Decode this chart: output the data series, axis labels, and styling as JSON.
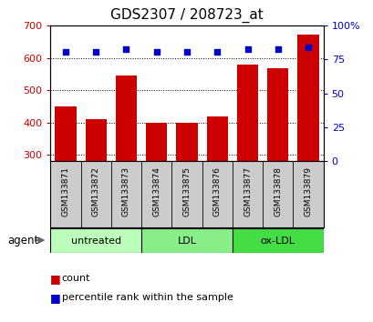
{
  "title": "GDS2307 / 208723_at",
  "categories": [
    "GSM133871",
    "GSM133872",
    "GSM133873",
    "GSM133874",
    "GSM133875",
    "GSM133876",
    "GSM133877",
    "GSM133878",
    "GSM133879"
  ],
  "counts": [
    450,
    410,
    545,
    398,
    398,
    418,
    580,
    568,
    672
  ],
  "percentile_ranks": [
    81,
    81,
    83,
    81,
    81,
    81,
    83,
    83,
    84
  ],
  "ylim_left": [
    280,
    700
  ],
  "ylim_right": [
    0,
    100
  ],
  "yticks_left": [
    300,
    400,
    500,
    600,
    700
  ],
  "yticks_right": [
    0,
    25,
    50,
    75,
    100
  ],
  "bar_color": "#cc0000",
  "dot_color": "#0000cc",
  "bar_bottom": 280,
  "agent_groups": [
    {
      "label": "untreated",
      "start": 0,
      "end": 3,
      "color": "#bbffbb"
    },
    {
      "label": "LDL",
      "start": 3,
      "end": 6,
      "color": "#88ee88"
    },
    {
      "label": "ox-LDL",
      "start": 6,
      "end": 9,
      "color": "#44dd44"
    }
  ],
  "xlabel_agent": "agent",
  "legend_count_color": "#cc0000",
  "legend_pct_color": "#0000cc",
  "background_color": "#ffffff",
  "plot_bg_color": "#ffffff",
  "xticklabel_bg": "#cccccc",
  "tick_label_color": "#cc0000",
  "right_tick_color": "#0000cc",
  "title_fontsize": 11,
  "axis_fontsize": 8,
  "legend_fontsize": 8
}
